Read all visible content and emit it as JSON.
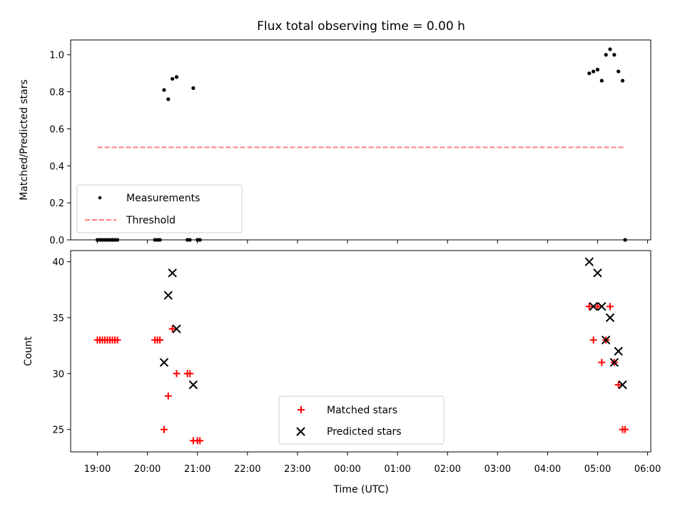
{
  "chart_data": [
    {
      "type": "scatter",
      "title": "Flux total observing time = 0.00 h",
      "xlabel": "",
      "ylabel": "Matched/Predicted stars",
      "ylim": [
        0,
        1.08
      ],
      "yticks": [
        "0.0",
        "0.2",
        "0.4",
        "0.6",
        "0.8",
        "1.0"
      ],
      "legend_position": "lower-left",
      "series": [
        {
          "name": "Measurements",
          "color": "#000000",
          "marker": "dot",
          "points": [
            [
              "19:00",
              0
            ],
            [
              "19:03",
              0
            ],
            [
              "19:06",
              0
            ],
            [
              "19:09",
              0
            ],
            [
              "19:12",
              0
            ],
            [
              "19:15",
              0
            ],
            [
              "19:18",
              0
            ],
            [
              "19:21",
              0
            ],
            [
              "19:24",
              0
            ],
            [
              "20:09",
              0
            ],
            [
              "20:12",
              0
            ],
            [
              "20:15",
              0
            ],
            [
              "20:20",
              0.81
            ],
            [
              "20:25",
              0.76
            ],
            [
              "20:30",
              0.87
            ],
            [
              "20:35",
              0.88
            ],
            [
              "20:48",
              0
            ],
            [
              "20:51",
              0
            ],
            [
              "20:55",
              0.82
            ],
            [
              "21:00",
              0
            ],
            [
              "21:03",
              0
            ],
            [
              "04:50",
              0.9
            ],
            [
              "04:55",
              0.91
            ],
            [
              "05:00",
              0.92
            ],
            [
              "05:05",
              0.86
            ],
            [
              "05:10",
              1.0
            ],
            [
              "05:15",
              1.03
            ],
            [
              "05:20",
              1.0
            ],
            [
              "05:25",
              0.91
            ],
            [
              "05:30",
              0.86
            ],
            [
              "05:33",
              0
            ]
          ]
        },
        {
          "name": "Threshold",
          "color": "#ff7f7f",
          "style": "dashed",
          "points": [
            [
              "19:00",
              0.5
            ],
            [
              "05:33",
              0.5
            ]
          ]
        }
      ]
    },
    {
      "type": "scatter",
      "title": "",
      "xlabel": "Time (UTC)",
      "ylabel": "Count",
      "ylim": [
        23,
        41
      ],
      "yticks": [
        "25",
        "30",
        "35",
        "40"
      ],
      "xticks": [
        "19:00",
        "20:00",
        "21:00",
        "22:00",
        "23:00",
        "00:00",
        "01:00",
        "02:00",
        "03:00",
        "04:00",
        "05:00",
        "06:00"
      ],
      "legend_position": "lower-center",
      "series": [
        {
          "name": "Matched stars",
          "color": "#ff0000",
          "marker": "plus",
          "points": [
            [
              "19:00",
              33
            ],
            [
              "19:03",
              33
            ],
            [
              "19:06",
              33
            ],
            [
              "19:09",
              33
            ],
            [
              "19:12",
              33
            ],
            [
              "19:15",
              33
            ],
            [
              "19:18",
              33
            ],
            [
              "19:21",
              33
            ],
            [
              "19:24",
              33
            ],
            [
              "20:09",
              33
            ],
            [
              "20:12",
              33
            ],
            [
              "20:15",
              33
            ],
            [
              "20:20",
              25
            ],
            [
              "20:25",
              28
            ],
            [
              "20:30",
              34
            ],
            [
              "20:35",
              30
            ],
            [
              "20:48",
              30
            ],
            [
              "20:51",
              30
            ],
            [
              "20:55",
              24
            ],
            [
              "21:00",
              24
            ],
            [
              "21:03",
              24
            ],
            [
              "04:50",
              36
            ],
            [
              "04:55",
              33
            ],
            [
              "05:00",
              36
            ],
            [
              "05:05",
              31
            ],
            [
              "05:10",
              33
            ],
            [
              "05:15",
              36
            ],
            [
              "05:20",
              31
            ],
            [
              "05:25",
              29
            ],
            [
              "05:30",
              25
            ],
            [
              "05:33",
              25
            ]
          ]
        },
        {
          "name": "Predicted stars",
          "color": "#000000",
          "marker": "x",
          "points": [
            [
              "20:20",
              31
            ],
            [
              "20:25",
              37
            ],
            [
              "20:30",
              39
            ],
            [
              "20:35",
              34
            ],
            [
              "20:55",
              29
            ],
            [
              "04:50",
              40
            ],
            [
              "04:55",
              36
            ],
            [
              "05:00",
              39
            ],
            [
              "05:05",
              36
            ],
            [
              "05:10",
              33
            ],
            [
              "05:15",
              35
            ],
            [
              "05:20",
              31
            ],
            [
              "05:25",
              32
            ],
            [
              "05:30",
              29
            ]
          ]
        }
      ]
    }
  ]
}
